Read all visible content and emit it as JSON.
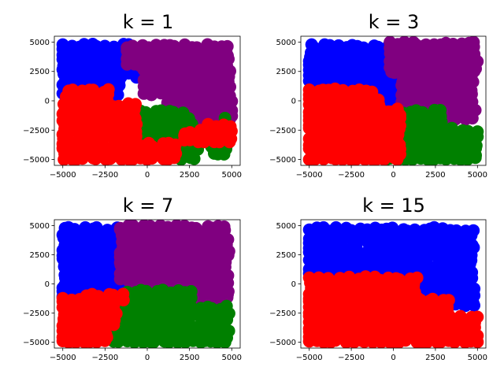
{
  "figure": {
    "background": "#ffffff"
  },
  "chart_data": [
    {
      "type": "scatter",
      "title": "k = 1",
      "xlim": [
        -5500,
        5500
      ],
      "ylim": [
        -5500,
        5500
      ],
      "xticks": [
        -5000,
        -2500,
        0,
        2500,
        5000
      ],
      "yticks": [
        -5000,
        -2500,
        0,
        2500,
        5000
      ],
      "xtick_labels": [
        "−5000",
        "−2500",
        "0",
        "2500",
        "5000"
      ],
      "ytick_labels": [
        "−5000",
        "−2500",
        "0",
        "2500",
        "5000"
      ],
      "grid": false,
      "series": [
        {
          "color": "#0000ff",
          "regions": [
            {
              "x": [
                -5000,
                -1400
              ],
              "y": [
                500,
                5000
              ]
            },
            {
              "x": [
                -1400,
                -800
              ],
              "y": [
                2200,
                5000
              ]
            },
            {
              "x": [
                -800,
                200
              ],
              "y": [
                2000,
                4300
              ]
            },
            {
              "x": [
                -4800,
                -3800
              ],
              "y": [
                -200,
                600
              ]
            },
            {
              "x": [
                -2600,
                -1800
              ],
              "y": [
                -300,
                800
              ]
            }
          ]
        },
        {
          "color": "#800080",
          "regions": [
            {
              "x": [
                -1200,
                5000
              ],
              "y": [
                3000,
                5000
              ]
            },
            {
              "x": [
                -200,
                5000
              ],
              "y": [
                500,
                3000
              ]
            },
            {
              "x": [
                1200,
                5000
              ],
              "y": [
                -1300,
                500
              ]
            },
            {
              "x": [
                3200,
                5000
              ],
              "y": [
                -2200,
                -1300
              ]
            }
          ]
        },
        {
          "color": "#008000",
          "regions": [
            {
              "x": [
                -400,
                2200
              ],
              "y": [
                -3400,
                -500
              ]
            },
            {
              "x": [
                2000,
                3200
              ],
              "y": [
                -5000,
                -3600
              ]
            },
            {
              "x": [
                2200,
                2800
              ],
              "y": [
                -2400,
                -1400
              ]
            },
            {
              "x": [
                3800,
                4800
              ],
              "y": [
                -4600,
                -3200
              ]
            },
            {
              "x": [
                4600,
                5000
              ],
              "y": [
                -2000,
                -1300
              ]
            }
          ]
        },
        {
          "color": "#ff0000",
          "regions": [
            {
              "x": [
                -5000,
                -400
              ],
              "y": [
                -5000,
                0
              ]
            },
            {
              "x": [
                -400,
                2000
              ],
              "y": [
                -5000,
                -3600
              ]
            },
            {
              "x": [
                2200,
                5000
              ],
              "y": [
                -3500,
                -2300
              ]
            },
            {
              "x": [
                -4800,
                -2200
              ],
              "y": [
                0,
                1200
              ]
            },
            {
              "x": [
                3600,
                5000
              ],
              "y": [
                -3300,
                -2000
              ]
            }
          ]
        }
      ]
    },
    {
      "type": "scatter",
      "title": "k = 3",
      "xlim": [
        -5500,
        5500
      ],
      "ylim": [
        -5500,
        5500
      ],
      "xticks": [
        -5000,
        -2500,
        0,
        2500,
        5000
      ],
      "yticks": [
        -5000,
        -2500,
        0,
        2500,
        5000
      ],
      "xtick_labels": [
        "−5000",
        "−2500",
        "0",
        "2500",
        "5000"
      ],
      "ytick_labels": [
        "−5000",
        "−2500",
        "0",
        "2500",
        "5000"
      ],
      "grid": false,
      "series": [
        {
          "color": "#0000ff",
          "regions": [
            {
              "x": [
                -5000,
                -100
              ],
              "y": [
                1700,
                5000
              ]
            },
            {
              "x": [
                -3200,
                500
              ],
              "y": [
                300,
                2100
              ]
            },
            {
              "x": [
                -1500,
                500
              ],
              "y": [
                -100,
                800
              ]
            }
          ]
        },
        {
          "color": "#800080",
          "regions": [
            {
              "x": [
                -200,
                5000
              ],
              "y": [
                2400,
                5000
              ]
            },
            {
              "x": [
                500,
                5000
              ],
              "y": [
                -800,
                2500
              ]
            },
            {
              "x": [
                3000,
                5000
              ],
              "y": [
                -1600,
                -800
              ]
            }
          ]
        },
        {
          "color": "#008000",
          "regions": [
            {
              "x": [
                -1000,
                5000
              ],
              "y": [
                -5000,
                -2100
              ]
            },
            {
              "x": [
                200,
                3000
              ],
              "y": [
                -2200,
                -800
              ]
            }
          ]
        },
        {
          "color": "#ff0000",
          "regions": [
            {
              "x": [
                -5000,
                -1200
              ],
              "y": [
                -5000,
                1200
              ]
            },
            {
              "x": [
                -1300,
                400
              ],
              "y": [
                -5000,
                -500
              ]
            },
            {
              "x": [
                -2600,
                -800
              ],
              "y": [
                -600,
                400
              ]
            }
          ]
        }
      ]
    },
    {
      "type": "scatter",
      "title": "k = 7",
      "xlim": [
        -5500,
        5500
      ],
      "ylim": [
        -5500,
        5500
      ],
      "xticks": [
        -5000,
        -2500,
        0,
        2500,
        5000
      ],
      "yticks": [
        -5000,
        -2500,
        0,
        2500,
        5000
      ],
      "xtick_labels": [
        "−5000",
        "−2500",
        "0",
        "2500",
        "5000"
      ],
      "ytick_labels": [
        "−5000",
        "−2500",
        "0",
        "2500",
        "5000"
      ],
      "grid": false,
      "series": [
        {
          "color": "#0000ff",
          "regions": [
            {
              "x": [
                -5000,
                -1600
              ],
              "y": [
                -1200,
                5000
              ]
            },
            {
              "x": [
                -1600,
                -900
              ],
              "y": [
                -600,
                3000
              ]
            }
          ]
        },
        {
          "color": "#800080",
          "regions": [
            {
              "x": [
                -1600,
                5000
              ],
              "y": [
                300,
                5000
              ]
            },
            {
              "x": [
                -800,
                5000
              ],
              "y": [
                -700,
                500
              ]
            },
            {
              "x": [
                2500,
                5000
              ],
              "y": [
                -1600,
                -700
              ]
            }
          ]
        },
        {
          "color": "#008000",
          "regions": [
            {
              "x": [
                -2000,
                5000
              ],
              "y": [
                -5000,
                -1800
              ]
            },
            {
              "x": [
                -1200,
                2600
              ],
              "y": [
                -1900,
                -500
              ]
            }
          ]
        },
        {
          "color": "#ff0000",
          "regions": [
            {
              "x": [
                -5000,
                -2100
              ],
              "y": [
                -5000,
                -1200
              ]
            },
            {
              "x": [
                -3600,
                -1300
              ],
              "y": [
                -1400,
                -600
              ]
            },
            {
              "x": [
                -2300,
                -1600
              ],
              "y": [
                -3500,
                -1300
              ]
            }
          ]
        }
      ]
    },
    {
      "type": "scatter",
      "title": "k = 15",
      "xlim": [
        -5500,
        5500
      ],
      "ylim": [
        -5500,
        5500
      ],
      "xticks": [
        -5000,
        -2500,
        0,
        2500,
        5000
      ],
      "yticks": [
        -5000,
        -2500,
        0,
        2500,
        5000
      ],
      "xtick_labels": [
        "−5000",
        "−2500",
        "0",
        "2500",
        "5000"
      ],
      "ytick_labels": [
        "−5000",
        "−2500",
        "0",
        "2500",
        "5000"
      ],
      "grid": false,
      "series": [
        {
          "color": "#0000ff",
          "regions": [
            {
              "x": [
                -5000,
                5000
              ],
              "y": [
                900,
                5000
              ]
            },
            {
              "x": [
                1700,
                5000
              ],
              "y": [
                -1100,
                1000
              ]
            },
            {
              "x": [
                3600,
                5000
              ],
              "y": [
                -1900,
                -1000
              ]
            }
          ]
        },
        {
          "color": "#ff0000",
          "regions": [
            {
              "x": [
                -5000,
                1600
              ],
              "y": [
                -5000,
                800
              ]
            },
            {
              "x": [
                1600,
                5000
              ],
              "y": [
                -5000,
                -2600
              ]
            },
            {
              "x": [
                1600,
                3500
              ],
              "y": [
                -2700,
                -1300
              ]
            }
          ]
        }
      ]
    }
  ]
}
